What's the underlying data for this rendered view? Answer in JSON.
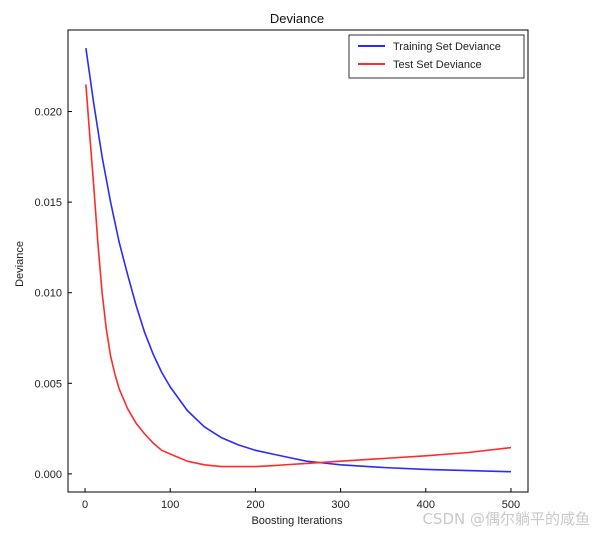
{
  "chart_data": {
    "type": "line",
    "title": "Deviance",
    "xlabel": "Boosting Iterations",
    "ylabel": "Deviance",
    "xlim": [
      -20,
      520
    ],
    "ylim": [
      -0.001,
      0.0245
    ],
    "xticks": [
      0,
      100,
      200,
      300,
      400,
      500
    ],
    "xtick_labels": [
      "0",
      "100",
      "200",
      "300",
      "400",
      "500"
    ],
    "yticks": [
      0.0,
      0.005,
      0.01,
      0.015,
      0.02
    ],
    "ytick_labels": [
      "0.000",
      "0.005",
      "0.010",
      "0.015",
      "0.020"
    ],
    "grid": false,
    "legend_position": "top-right",
    "series": [
      {
        "name": "Training Set Deviance",
        "color": "#2b2bff",
        "x": [
          1,
          10,
          20,
          30,
          40,
          50,
          60,
          70,
          80,
          90,
          100,
          120,
          140,
          160,
          180,
          200,
          220,
          240,
          260,
          280,
          300,
          350,
          400,
          450,
          500
        ],
        "y": [
          0.0235,
          0.0205,
          0.0175,
          0.015,
          0.0128,
          0.011,
          0.0093,
          0.0078,
          0.0066,
          0.0056,
          0.0048,
          0.0035,
          0.0026,
          0.002,
          0.0016,
          0.0013,
          0.0011,
          0.0009,
          0.0007,
          0.0006,
          0.0005,
          0.00035,
          0.00025,
          0.00018,
          0.00012
        ]
      },
      {
        "name": "Test Set Deviance",
        "color": "#ff2b2b",
        "x": [
          1,
          5,
          10,
          15,
          20,
          25,
          30,
          35,
          40,
          50,
          60,
          70,
          80,
          90,
          100,
          120,
          140,
          160,
          180,
          200,
          220,
          240,
          260,
          280,
          300,
          350,
          400,
          450,
          500
        ],
        "y": [
          0.0215,
          0.019,
          0.016,
          0.0128,
          0.01,
          0.008,
          0.0065,
          0.0055,
          0.0047,
          0.0036,
          0.0028,
          0.0022,
          0.0017,
          0.0013,
          0.0011,
          0.0007,
          0.0005,
          0.0004,
          0.0004,
          0.0004,
          0.00045,
          0.00052,
          0.00058,
          0.00064,
          0.0007,
          0.00085,
          0.001,
          0.00118,
          0.00145
        ]
      }
    ]
  },
  "watermark": "CSDN @偶尔躺平的咸鱼"
}
